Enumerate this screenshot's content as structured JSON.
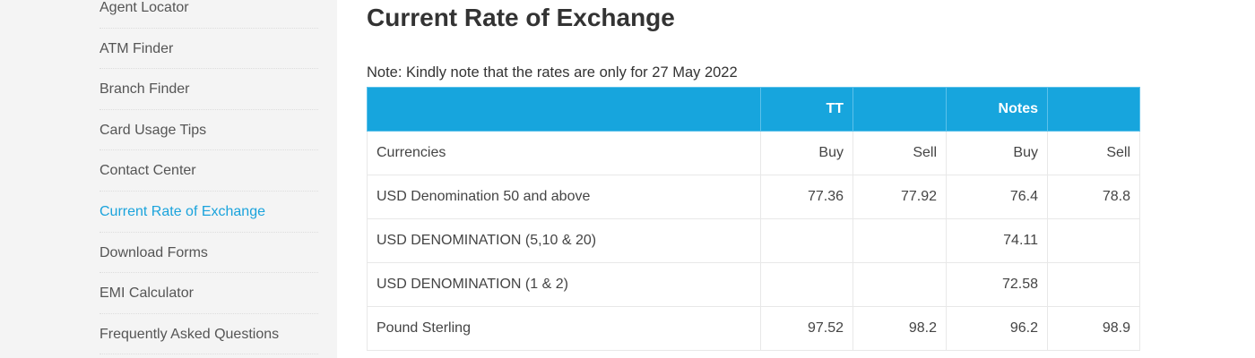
{
  "sidebar": {
    "items": [
      {
        "label": "Agent Locator"
      },
      {
        "label": "ATM Finder"
      },
      {
        "label": "Branch Finder"
      },
      {
        "label": "Card Usage Tips"
      },
      {
        "label": "Contact Center"
      },
      {
        "label": "Current Rate of Exchange",
        "active": true
      },
      {
        "label": "Download Forms"
      },
      {
        "label": "EMI Calculator"
      },
      {
        "label": "Frequently Asked Questions"
      }
    ]
  },
  "main": {
    "title": "Current Rate of Exchange",
    "note": "Note: Kindly note that the rates are only for 27 May 2022",
    "table": {
      "group_headers": [
        "",
        "TT",
        "",
        "Notes",
        ""
      ],
      "columns": [
        "Currencies",
        "Buy",
        "Sell",
        "Buy",
        "Sell"
      ],
      "rows": [
        [
          "USD Denomination 50 and above",
          "77.36",
          "77.92",
          "76.4",
          "78.8"
        ],
        [
          "USD DENOMINATION (5,10 & 20)",
          "",
          "",
          "74.11",
          ""
        ],
        [
          "USD DENOMINATION (1 & 2)",
          "",
          "",
          "72.58",
          ""
        ],
        [
          "Pound Sterling",
          "97.52",
          "98.2",
          "96.2",
          "98.9"
        ]
      ]
    }
  },
  "colors": {
    "accent": "#17a5dd",
    "sidebar_bg": "#f4f4f4"
  }
}
